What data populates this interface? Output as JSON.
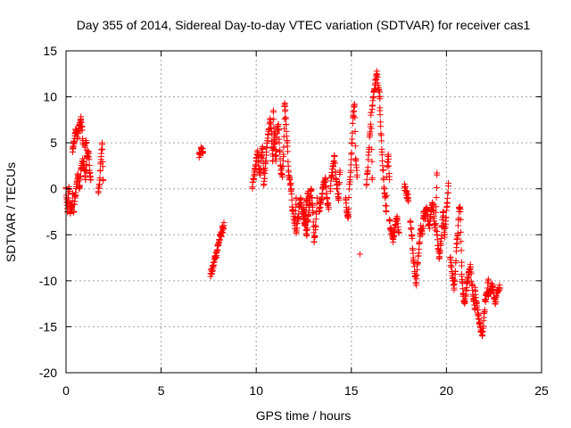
{
  "chart_data": {
    "type": "scatter",
    "title": "Day 355 of 2014, Sidereal Day-to-day VTEC variation (SDTVAR) for receiver cas1",
    "xlabel": "GPS time / hours",
    "ylabel": "SDTVAR / TECUs",
    "xlim": [
      0,
      25
    ],
    "ylim": [
      -20,
      15
    ],
    "xticks": [
      0,
      5,
      10,
      15,
      20,
      25
    ],
    "yticks": [
      -20,
      -15,
      -10,
      -5,
      0,
      5,
      10,
      15
    ],
    "grid": true,
    "marker": "+",
    "color": "#ff0000",
    "segments": [
      {
        "x0": 0.0,
        "x1": 0.35,
        "ys": [
          0.0,
          -1.5,
          -2.5,
          -1.0,
          0.2,
          -2.0,
          -2.6,
          -1.8,
          -2.2,
          -0.5
        ]
      },
      {
        "x0": 0.35,
        "x1": 0.9,
        "ys": [
          4.0,
          5.0,
          6.0,
          6.3,
          5.5,
          6.5,
          7.0,
          7.6,
          6.8,
          5.0
        ]
      },
      {
        "x0": 0.4,
        "x1": 1.1,
        "ys": [
          -2.5,
          -1.0,
          0.5,
          1.5,
          0.0,
          2.0,
          3.0,
          2.5,
          1.0,
          3.5
        ]
      },
      {
        "x0": 1.0,
        "x1": 1.3,
        "ys": [
          4.5,
          5.0,
          3.5,
          4.0,
          2.0,
          1.0
        ]
      },
      {
        "x0": 1.7,
        "x1": 1.95,
        "ys": [
          -0.3,
          0.5,
          2.0,
          3.5,
          5.0,
          1.0
        ]
      },
      {
        "x0": 7.0,
        "x1": 7.2,
        "ys": [
          3.8,
          4.3,
          4.0
        ]
      },
      {
        "x0": 7.6,
        "x1": 8.3,
        "ys": [
          -9.2,
          -9.0,
          -8.3,
          -7.5,
          -7.0,
          -6.2,
          -5.5,
          -5.0,
          -4.5,
          -4.0
        ]
      },
      {
        "x0": 9.8,
        "x1": 10.4,
        "ys": [
          0.2,
          1.0,
          2.0,
          3.0,
          4.0,
          2.5,
          1.5,
          3.5,
          4.4,
          2.0
        ]
      },
      {
        "x0": 10.4,
        "x1": 11.0,
        "ys": [
          0.5,
          2.0,
          4.0,
          5.5,
          6.5,
          7.5,
          6.0,
          3.0,
          5.0,
          6.0
        ]
      },
      {
        "x0": 10.9,
        "x1": 11.5,
        "ys": [
          8.5,
          5.0,
          3.0,
          6.0,
          7.0,
          4.0,
          2.0,
          1.5,
          3.5,
          9.0
        ]
      },
      {
        "x0": 11.5,
        "x1": 12.1,
        "ys": [
          9.3,
          7.0,
          5.0,
          2.0,
          1.0,
          0.0,
          -2.0,
          -3.0,
          -4.0,
          -1.0
        ]
      },
      {
        "x0": 12.1,
        "x1": 12.8,
        "ys": [
          -4.5,
          -3.5,
          -2.0,
          -1.0,
          -2.5,
          -3.0,
          -4.0,
          -1.5,
          -0.5,
          -2.0
        ]
      },
      {
        "x0": 12.5,
        "x1": 13.2,
        "ys": [
          -2.0,
          -3.5,
          -5.0,
          -3.0,
          -1.5,
          0.0,
          -2.0,
          -5.8,
          -4.0,
          -1.0
        ]
      },
      {
        "x0": 13.3,
        "x1": 13.8,
        "ys": [
          -2.5,
          -1.5,
          -0.5,
          0.5,
          1.0,
          -1.0,
          -2.0
        ]
      },
      {
        "x0": 13.9,
        "x1": 14.4,
        "ys": [
          0.0,
          1.5,
          2.5,
          3.5,
          1.0,
          0.0,
          -1.0,
          2.0
        ]
      },
      {
        "x0": 14.7,
        "x1": 15.3,
        "ys": [
          -1.0,
          -2.5,
          -3.2,
          0.5,
          2.0,
          5.0,
          8.0,
          9.2,
          3.0,
          1.5
        ]
      },
      {
        "x0": 15.4,
        "x1": 15.5,
        "ys": [
          -7.1
        ]
      },
      {
        "x0": 15.8,
        "x1": 16.1,
        "ys": [
          0.5,
          2.0,
          4.0,
          6.0,
          8.3,
          1.0
        ]
      },
      {
        "x0": 16.1,
        "x1": 16.5,
        "ys": [
          9.0,
          10.5,
          11.5,
          12.5,
          11.0,
          10.0
        ]
      },
      {
        "x0": 16.5,
        "x1": 17.0,
        "ys": [
          8.5,
          6.0,
          4.0,
          2.0,
          0.0,
          -1.0,
          -2.5,
          2.5,
          3.5,
          1.0
        ]
      },
      {
        "x0": 17.0,
        "x1": 17.5,
        "ys": [
          -3.5,
          -4.5,
          -5.5,
          -4.0,
          -3.0,
          -4.8
        ]
      },
      {
        "x0": 17.8,
        "x1": 18.0,
        "ys": [
          0.2,
          -0.5,
          -1.0
        ]
      },
      {
        "x0": 18.1,
        "x1": 18.8,
        "ys": [
          -3.5,
          -5.0,
          -7.5,
          -9.0,
          -10.5,
          -8.0,
          -6.0,
          -4.0,
          -5.0,
          -3.0
        ]
      },
      {
        "x0": 18.8,
        "x1": 19.5,
        "ys": [
          -2.5,
          -3.0,
          -2.0,
          -3.5,
          -4.0,
          -2.5,
          -1.5,
          -3.0,
          -4.5,
          1.5
        ]
      },
      {
        "x0": 19.5,
        "x1": 20.1,
        "ys": [
          -5.0,
          -6.5,
          -7.5,
          -6.0,
          -4.0,
          -2.5,
          -5.0,
          -3.5,
          -1.5,
          0.3
        ]
      },
      {
        "x0": 20.2,
        "x1": 20.8,
        "ys": [
          -7.5,
          -8.5,
          -10.0,
          -11.0,
          -9.0,
          -6.0,
          -5.0,
          -2.0,
          -2.5,
          -8.0
        ]
      },
      {
        "x0": 20.8,
        "x1": 21.5,
        "ys": [
          -9.5,
          -11.5,
          -12.5,
          -11.0,
          -10.0,
          -9.0,
          -8.5,
          -10.5,
          -12.0,
          -13.0
        ]
      },
      {
        "x0": 21.5,
        "x1": 22.2,
        "ys": [
          -11.0,
          -12.5,
          -13.5,
          -14.5,
          -15.5,
          -16.0,
          -14.0,
          -12.0,
          -11.5,
          -10.0
        ]
      },
      {
        "x0": 22.2,
        "x1": 22.8,
        "ys": [
          -11.5,
          -11.0,
          -10.5,
          -12.5,
          -11.0,
          -10.8
        ]
      }
    ]
  }
}
